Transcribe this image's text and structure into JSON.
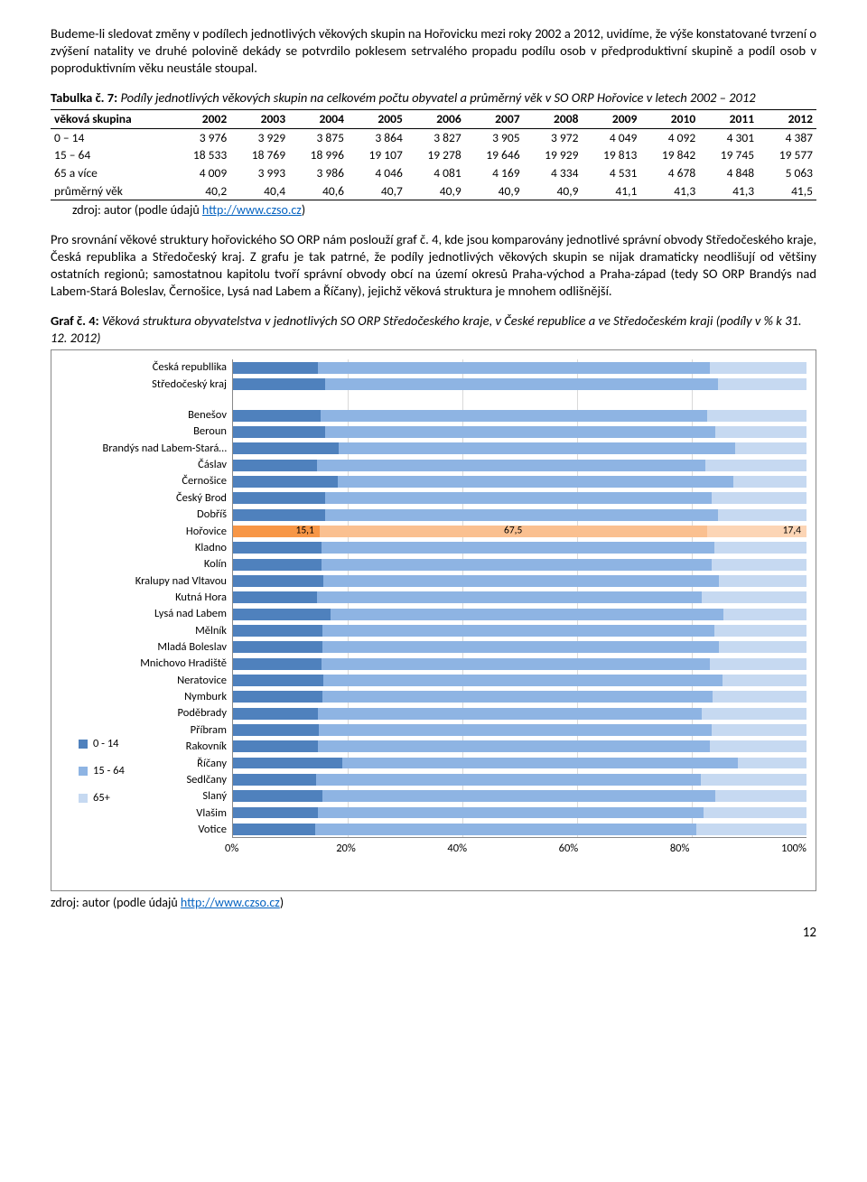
{
  "paragraph1": "Budeme-li sledovat změny v podílech jednotlivých věkových skupin na Hořovicku mezi roky 2002 a 2012, uvidíme, že výše konstatované tvrzení o zvýšení natality ve druhé polovině dekády se potvrdilo poklesem setrvalého propadu podílu osob v předproduktivní skupině a podíl osob v poproduktivním věku neustále stoupal.",
  "table_caption_label": "Tabulka č. 7:",
  "table_caption_text": "Podíly jednotlivých věkových skupin na celkovém počtu obyvatel a průměrný věk v SO ORP Hořovice v letech 2002 – 2012",
  "table": {
    "header_first": "věková skupina",
    "years": [
      "2002",
      "2003",
      "2004",
      "2005",
      "2006",
      "2007",
      "2008",
      "2009",
      "2010",
      "2011",
      "2012"
    ],
    "rows": [
      {
        "label": "0 – 14",
        "vals": [
          "3 976",
          "3 929",
          "3 875",
          "3 864",
          "3 827",
          "3 905",
          "3 972",
          "4 049",
          "4 092",
          "4 301",
          "4 387"
        ]
      },
      {
        "label": "15 – 64",
        "vals": [
          "18 533",
          "18 769",
          "18 996",
          "19 107",
          "19 278",
          "19 646",
          "19 929",
          "19 813",
          "19 842",
          "19 745",
          "19 577"
        ]
      },
      {
        "label": "65 a více",
        "vals": [
          "4 009",
          "3 993",
          "3 986",
          "4 046",
          "4 081",
          "4 169",
          "4 334",
          "4 531",
          "4 678",
          "4 848",
          "5 063"
        ]
      },
      {
        "label": "průměrný věk",
        "vals": [
          "40,2",
          "40,4",
          "40,6",
          "40,7",
          "40,9",
          "40,9",
          "40,9",
          "41,1",
          "41,3",
          "41,3",
          "41,5"
        ]
      }
    ]
  },
  "source_prefix": "zdroj: autor (podle údajů ",
  "source_link_text": "http://www.czso.cz",
  "source_suffix": ")",
  "paragraph2": "Pro srovnání věkové struktury hořovického SO ORP nám poslouží graf č. 4, kde jsou komparovány jednotlivé správní obvody Středočeského kraje, Česká republika a Středočeský kraj. Z grafu je tak patrné, že podíly jednotlivých věkových skupin se nijak dramaticky neodlišují od většiny ostatních regionů; samostatnou kapitolu tvoří správní obvody obcí na území okresů Praha-východ a Praha-západ (tedy SO ORP Brandýs nad Labem-Stará Boleslav, Černošice, Lysá nad Labem a Říčany), jejichž věková struktura je mnohem odlišnější.",
  "chart_caption_label": "Graf č. 4:",
  "chart_caption_text": "Věková struktura obyvatelstva v jednotlivých SO ORP Středočeského kraje, v České republice a ve Středočeském kraji (podíly v % k 31. 12. 2012)",
  "chart": {
    "type": "horizontal-stacked-bar",
    "colors": {
      "s0_14": "#4f81bd",
      "s15_64": "#8eb4e3",
      "s65": "#c6d9f1",
      "hl_s0_14": "#f79646",
      "hl_s15_64": "#fac090",
      "hl_s65": "#fcd5b5",
      "grid": "#d9d9d9",
      "border": "#888888"
    },
    "x_ticks": [
      "0%",
      "20%",
      "40%",
      "60%",
      "80%",
      "100%"
    ],
    "legend": [
      "0 - 14",
      "15 - 64",
      "65+"
    ],
    "highlight": "Hořovice",
    "highlight_values": [
      "15,1",
      "67,5",
      "17,4"
    ],
    "groups": [
      {
        "items": [
          {
            "label": "Česká republlika",
            "v": [
              14.8,
              68.4,
              16.8
            ]
          },
          {
            "label": "Středočeský kraj",
            "v": [
              16.1,
              68.4,
              15.5
            ]
          }
        ]
      },
      {
        "items": [
          {
            "label": "Benešov",
            "v": [
              15.2,
              67.5,
              17.3
            ]
          },
          {
            "label": "Beroun",
            "v": [
              16.1,
              68.0,
              15.9
            ]
          },
          {
            "label": "Brandýs nad Labem-Stará…",
            "v": [
              18.5,
              69.0,
              12.5
            ]
          },
          {
            "label": "Čáslav",
            "v": [
              14.7,
              67.6,
              17.7
            ]
          },
          {
            "label": "Černošice",
            "v": [
              18.3,
              69.0,
              12.7
            ]
          },
          {
            "label": "Český Brod",
            "v": [
              16.0,
              67.5,
              16.5
            ]
          },
          {
            "label": "Dobříš",
            "v": [
              16.1,
              68.5,
              15.4
            ]
          },
          {
            "label": "Hořovice",
            "v": [
              15.1,
              67.5,
              17.4
            ],
            "highlight": true
          },
          {
            "label": "Kladno",
            "v": [
              15.4,
              68.5,
              16.1
            ]
          },
          {
            "label": "Kolín",
            "v": [
              15.5,
              68.0,
              16.5
            ]
          },
          {
            "label": "Kralupy nad Vltavou",
            "v": [
              15.8,
              69.0,
              15.2
            ]
          },
          {
            "label": "Kutná Hora",
            "v": [
              14.6,
              67.2,
              18.2
            ]
          },
          {
            "label": "Lysá nad Labem",
            "v": [
              17.0,
              68.5,
              14.5
            ]
          },
          {
            "label": "Mělník",
            "v": [
              15.6,
              68.3,
              16.1
            ]
          },
          {
            "label": "Mladá Boleslav",
            "v": [
              15.6,
              69.2,
              15.2
            ]
          },
          {
            "label": "Mnichovo Hradiště",
            "v": [
              15.4,
              67.8,
              16.8
            ]
          },
          {
            "label": "Neratovice",
            "v": [
              15.8,
              69.5,
              14.7
            ]
          },
          {
            "label": "Nymburk",
            "v": [
              15.6,
              68.0,
              16.4
            ]
          },
          {
            "label": "Poděbrady",
            "v": [
              14.8,
              67.0,
              18.2
            ]
          },
          {
            "label": "Příbram",
            "v": [
              14.9,
              68.5,
              16.6
            ]
          },
          {
            "label": "Rakovník",
            "v": [
              14.8,
              68.4,
              16.8
            ]
          },
          {
            "label": "Říčany",
            "v": [
              19.0,
              69.0,
              12.0
            ]
          },
          {
            "label": "Sedlčany",
            "v": [
              14.5,
              67.0,
              18.5
            ]
          },
          {
            "label": "Slaný",
            "v": [
              15.6,
              68.5,
              15.9
            ]
          },
          {
            "label": "Vlašim",
            "v": [
              14.8,
              67.2,
              18.0
            ]
          },
          {
            "label": "Votice",
            "v": [
              14.3,
              66.5,
              19.2
            ]
          }
        ]
      }
    ]
  },
  "page_number": "12"
}
